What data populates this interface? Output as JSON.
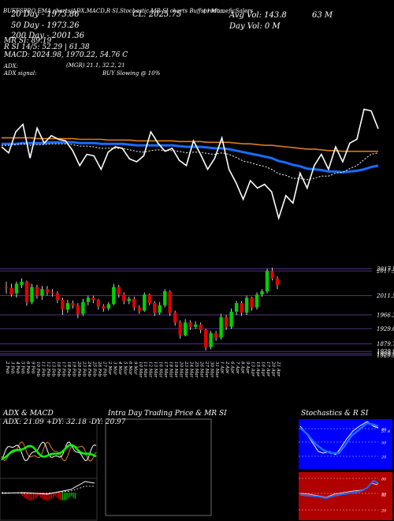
{
  "header": {
    "line0": "BUFFSPRO EMA charts/ADX,MACD,R   SI,Stochastic,MR   SI charts  Buffsprodt...",
    "sma20": "20 Day - 1973.86",
    "sma50": "50 Day - 1973.26",
    "sma200": "200 Day - 2001.36",
    "rsi": "R    SI 14/5: 52.29 | 61.38",
    "mrsi": "MR   SI: 89.19",
    "macd": "MACD: 2024.98, 1970.22, 54.76  C",
    "close": "CL: 2025.75",
    "avg_vol": "Avg Vol: 143.8",
    "avg_vol_unit": "63 M",
    "day_vol": "Day Vol: 0   M",
    "adx": "ADX:",
    "adx_signal": "ADX  signal:",
    "mrsi_values": "(MGR) 21.1, 32.2, 21",
    "buy_signal": "BUY Slowing @ 10%",
    "mfi_label": "( ) MomeficSalers"
  },
  "panels": {
    "adx_title": "ADX  & MACD",
    "adx_values": "ADX: 21.09  +DY: 32.18  -DY: 20.97",
    "intraday_title": "Intra  Day Trading Price  & MR              SI",
    "stoch_title": "Stochastics & R             SI",
    "stoch_levels": [
      "80",
      "50",
      "20"
    ],
    "rsi_levels": [
      "80",
      "50",
      "20"
    ],
    "stoch_value": "57.4",
    "rsi_value": "52"
  },
  "colors": {
    "price": "#ffffff",
    "ema_blue": "#1a6cff",
    "ema_orange": "#e07b1a",
    "ema_white": "#ffffff",
    "up": "#00d000",
    "down": "#e00000",
    "panel_blue": "#0000ff",
    "panel_red": "#b00000"
  },
  "chart_data": [
    {
      "type": "line",
      "x": [
        "2 Feb",
        "3 Feb",
        "4 Feb",
        "5 Feb",
        "6 Feb",
        "9 Feb",
        "10 Feb",
        "11 Feb",
        "12 Feb",
        "13 Feb",
        "16 Feb",
        "17 Feb",
        "18 Feb",
        "19 Feb",
        "20 Feb",
        "23 Feb",
        "24 Feb",
        "25 Feb",
        "26 Feb",
        "27 Feb",
        "2 Mar",
        "3 Mar",
        "4 Mar",
        "5 Mar",
        "6 Mar",
        "9 Mar",
        "10 Mar",
        "11 Mar",
        "12 Mar",
        "13 Mar",
        "16 Mar",
        "17 Mar",
        "18 Mar",
        "19 Mar",
        "20 Mar",
        "23 Mar",
        "24 Mar",
        "25 Mar",
        "26 Mar",
        "27 Mar",
        "30 Mar",
        "31 Mar",
        "1 Apr",
        "2 Apr",
        "6 Apr",
        "7 Apr",
        "8 Apr",
        "9 Apr",
        "13 Apr",
        "15 Apr",
        "16 Apr",
        "17 Apr",
        "20 Apr",
        "21 Apr"
      ],
      "series": [
        {
          "values": [
            2010,
            2002,
            2030,
            2040,
            1995,
            2035,
            2015,
            2025,
            2020,
            2018,
            2005,
            1985,
            2000,
            1998,
            1980,
            2003,
            2010,
            2008,
            1994,
            1990,
            1998,
            2030,
            2015,
            2004,
            2008,
            1992,
            1985,
            2018,
            2000,
            1980,
            1995,
            2022,
            1980,
            1962,
            1940,
            1965,
            1955,
            1960,
            1950,
            1915,
            1945,
            1935,
            1975,
            1955,
            1985,
            2000,
            1980,
            2010,
            1990,
            2015,
            2020,
            2060,
            2058,
            2034
          ]
        },
        {
          "values": [
            2012,
            2012,
            2013,
            2014,
            2012,
            2013,
            2013,
            2014,
            2014,
            2014,
            2013,
            2011,
            2011,
            2010,
            2008,
            2008,
            2008,
            2008,
            2006,
            2004,
            2003,
            2005,
            2006,
            2005,
            2005,
            2004,
            2002,
            2003,
            2003,
            2001,
            2000,
            2002,
            2000,
            1996,
            1991,
            1989,
            1986,
            1984,
            1980,
            1974,
            1972,
            1968,
            1968,
            1966,
            1968,
            1971,
            1971,
            1975,
            1976,
            1981,
            1985,
            1993,
            2000,
            2002
          ]
        },
        {
          "values": [
            2014,
            2014,
            2014,
            2015,
            2015,
            2015,
            2015,
            2016,
            2016,
            2016,
            2016,
            2015,
            2015,
            2015,
            2014,
            2014,
            2014,
            2014,
            2013,
            2012,
            2012,
            2012,
            2012,
            2012,
            2012,
            2011,
            2010,
            2010,
            2010,
            2009,
            2008,
            2008,
            2007,
            2005,
            2003,
            2001,
            1999,
            1997,
            1995,
            1991,
            1989,
            1986,
            1984,
            1981,
            1980,
            1979,
            1977,
            1977,
            1976,
            1977,
            1978,
            1980,
            1983,
            1985
          ]
        },
        {
          "values": [
            2022,
            2022,
            2022,
            2022,
            2022,
            2021,
            2021,
            2021,
            2021,
            2021,
            2021,
            2020,
            2020,
            2020,
            2020,
            2019,
            2019,
            2019,
            2019,
            2018,
            2018,
            2018,
            2018,
            2018,
            2018,
            2017,
            2017,
            2017,
            2017,
            2016,
            2016,
            2016,
            2016,
            2015,
            2014,
            2014,
            2013,
            2012,
            2012,
            2011,
            2010,
            2009,
            2008,
            2007,
            2007,
            2006,
            2005,
            2005,
            2004,
            2004,
            2004,
            2004,
            2004,
            2004
          ]
        }
      ],
      "ylim": [
        1890,
        2090
      ]
    },
    {
      "type": "bar",
      "categories": [
        "2 Feb",
        "3 Feb",
        "4 Feb",
        "5 Feb",
        "6 Feb",
        "9 Feb",
        "10 Feb",
        "11 Feb",
        "12 Feb",
        "13 Feb",
        "16 Feb",
        "17 Feb",
        "18 Feb",
        "19 Feb",
        "20 Feb",
        "23 Feb",
        "24 Feb",
        "25 Feb",
        "26 Feb",
        "27 Feb",
        "2 Mar",
        "3 Mar",
        "4 Mar",
        "5 Mar",
        "6 Mar",
        "9 Mar",
        "10 Mar",
        "11 Mar",
        "12 Mar",
        "13 Mar",
        "16 Mar",
        "17 Mar",
        "18 Mar",
        "19 Mar",
        "20 Mar",
        "23 Mar",
        "24 Mar",
        "25 Mar",
        "26 Mar",
        "27 Mar",
        "30 Mar",
        "31 Mar",
        "1 Apr",
        "2 Apr",
        "6 Apr",
        "7 Apr",
        "8 Apr",
        "9 Apr",
        "13 Apr",
        "15 Apr",
        "16 Apr",
        "17 Apr",
        "20 Apr",
        "21 Apr"
      ],
      "ohlc": [
        [
          2030,
          2040,
          2018,
          2028
        ],
        [
          2028,
          2036,
          2012,
          2016
        ],
        [
          2018,
          2040,
          2010,
          2036
        ],
        [
          2034,
          2046,
          2028,
          2040
        ],
        [
          2040,
          2042,
          1995,
          2002
        ],
        [
          2002,
          2036,
          1998,
          2030
        ],
        [
          2030,
          2034,
          2008,
          2014
        ],
        [
          2014,
          2032,
          2006,
          2026
        ],
        [
          2026,
          2032,
          2014,
          2020
        ],
        [
          2020,
          2026,
          2012,
          2018
        ],
        [
          2018,
          2022,
          2000,
          2006
        ],
        [
          2006,
          2010,
          1978,
          1988
        ],
        [
          1988,
          2006,
          1982,
          2000
        ],
        [
          2000,
          2005,
          1990,
          1996
        ],
        [
          1996,
          2000,
          1972,
          1980
        ],
        [
          1980,
          2008,
          1976,
          2002
        ],
        [
          2002,
          2014,
          1996,
          2010
        ],
        [
          2010,
          2014,
          2000,
          2006
        ],
        [
          2006,
          2008,
          1988,
          1994
        ],
        [
          1994,
          1998,
          1984,
          1990
        ],
        [
          1990,
          2002,
          1986,
          1998
        ],
        [
          1998,
          2036,
          1996,
          2030
        ],
        [
          2030,
          2034,
          2010,
          2016
        ],
        [
          2016,
          2020,
          1998,
          2004
        ],
        [
          2004,
          2012,
          1998,
          2008
        ],
        [
          2008,
          2012,
          1986,
          1992
        ],
        [
          1992,
          1996,
          1980,
          1986
        ],
        [
          1986,
          2020,
          1984,
          2016
        ],
        [
          2016,
          2018,
          1996,
          2000
        ],
        [
          2000,
          2004,
          1976,
          1982
        ],
        [
          1982,
          2002,
          1978,
          1996
        ],
        [
          1996,
          2026,
          1992,
          2022
        ],
        [
          2022,
          2024,
          1976,
          1982
        ],
        [
          1982,
          1986,
          1958,
          1964
        ],
        [
          1964,
          1968,
          1934,
          1940
        ],
        [
          1940,
          1970,
          1938,
          1964
        ],
        [
          1964,
          1968,
          1950,
          1956
        ],
        [
          1956,
          1966,
          1952,
          1960
        ],
        [
          1960,
          1964,
          1944,
          1950
        ],
        [
          1950,
          1952,
          1912,
          1918
        ],
        [
          1918,
          1948,
          1914,
          1944
        ],
        [
          1944,
          1948,
          1930,
          1936
        ],
        [
          1936,
          1980,
          1932,
          1974
        ],
        [
          1974,
          1978,
          1950,
          1956
        ],
        [
          1956,
          1990,
          1952,
          1984
        ],
        [
          1984,
          2004,
          1978,
          2000
        ],
        [
          2000,
          2004,
          1976,
          1982
        ],
        [
          1982,
          2014,
          1978,
          2010
        ],
        [
          2010,
          2012,
          1986,
          1992
        ],
        [
          1992,
          2020,
          1988,
          2016
        ],
        [
          2016,
          2026,
          2012,
          2022
        ],
        [
          2022,
          2064,
          2018,
          2060
        ],
        [
          2060,
          2066,
          2042,
          2046
        ],
        [
          2046,
          2050,
          2026,
          2034
        ]
      ],
      "tick_labels": [
        "2017.5",
        "2017.5",
        "2011.55",
        "1966.35",
        "1929.63",
        "1879.7",
        "1929.98",
        "1929.98",
        "1929.98"
      ],
      "ylim": [
        1900,
        2072
      ]
    }
  ]
}
